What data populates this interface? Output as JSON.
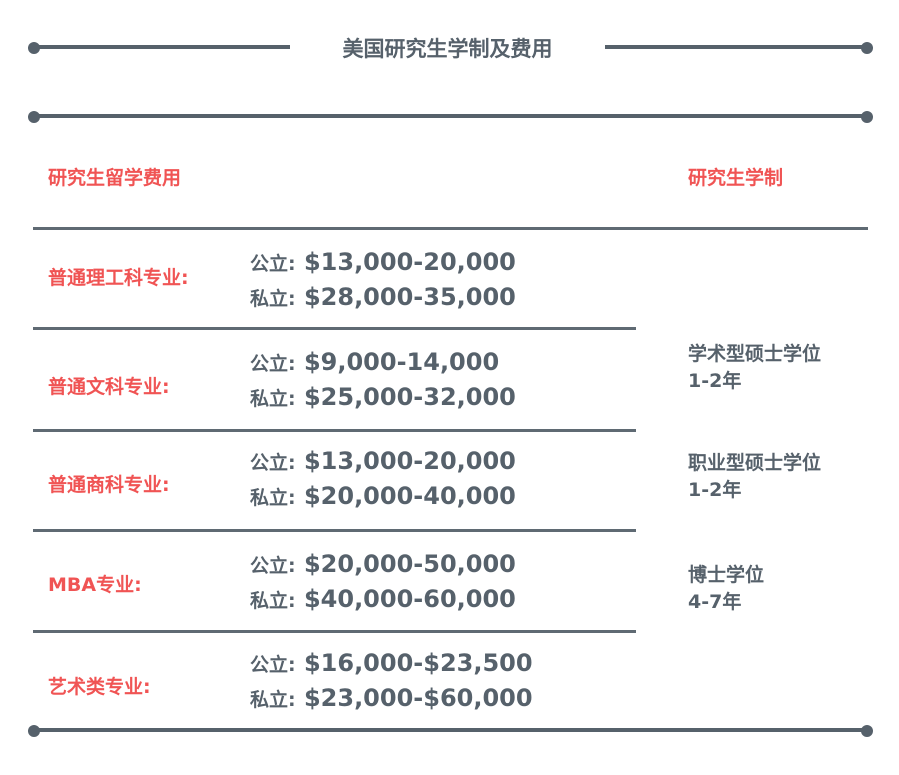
{
  "title": "美国研究生学制及费用",
  "headers": {
    "fees": "研究生留学费用",
    "system": "研究生学制"
  },
  "rows": [
    {
      "label": "普通理工科专业:",
      "public_label": "公立:",
      "public": "$13,000-20,000",
      "private_label": "私立:",
      "private": "$28,000-35,000"
    },
    {
      "label": "普通文科专业:",
      "public_label": "公立:",
      "public": "$9,000-14,000",
      "private_label": "私立:",
      "private": "$25,000-32,000"
    },
    {
      "label": "普通商科专业:",
      "public_label": "公立:",
      "public": "$13,000-20,000",
      "private_label": "私立:",
      "private": "$20,000-40,000"
    },
    {
      "label": "MBA专业:",
      "public_label": "公立:",
      "public": "$20,000-50,000",
      "private_label": "私立:",
      "private": "$40,000-60,000"
    },
    {
      "label": "艺术类专业:",
      "public_label": "公立:",
      "public": "$16,000-$23,500",
      "private_label": "私立:",
      "private": "$23,000-$60,000"
    }
  ],
  "degrees": [
    {
      "name": "学术型硕士学位",
      "duration": "1-2年"
    },
    {
      "name": "职业型硕士学位",
      "duration": "1-2年"
    },
    {
      "name": "博士学位",
      "duration": "4-7年"
    }
  ],
  "colors": {
    "accent": "#f05454",
    "text": "#56616b"
  }
}
